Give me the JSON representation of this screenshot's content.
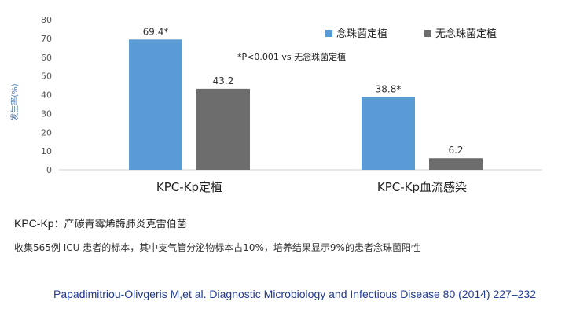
{
  "chart_data": {
    "type": "bar",
    "categories": [
      "KPC-Kp定植",
      "KPC-Kp血流感染"
    ],
    "series": [
      {
        "name": "念珠菌定植",
        "color": "#5b9bd5",
        "values": [
          69.4,
          38.8
        ],
        "labels": [
          "69.4*",
          "38.8*"
        ]
      },
      {
        "name": "无念珠菌定植",
        "color": "#6d6d6d",
        "values": [
          43.2,
          6.2
        ],
        "labels": [
          "43.2",
          "6.2"
        ]
      }
    ],
    "ylabel": "发生率(%)",
    "ylim": [
      0,
      80
    ],
    "yticks": [
      0,
      10,
      20,
      30,
      40,
      50,
      60,
      70,
      80
    ],
    "annotation": "*P<0.001 vs 无念珠菌定植",
    "grid": false,
    "legend": "top-right"
  },
  "abbreviation": {
    "key": "KPC-Kp",
    "sep": "：",
    "text": "产碳青霉烯酶肺炎克雷伯菌"
  },
  "note": "收集565例 ICU 患者的标本，其中支气管分泌物标本占10%，培养结果显示9%的患者念珠菌阳性",
  "reference": "Papadimitriou-Olivgeris M,et al. Diagnostic Microbiology and Infectious Disease 80 (2014) 227–232"
}
